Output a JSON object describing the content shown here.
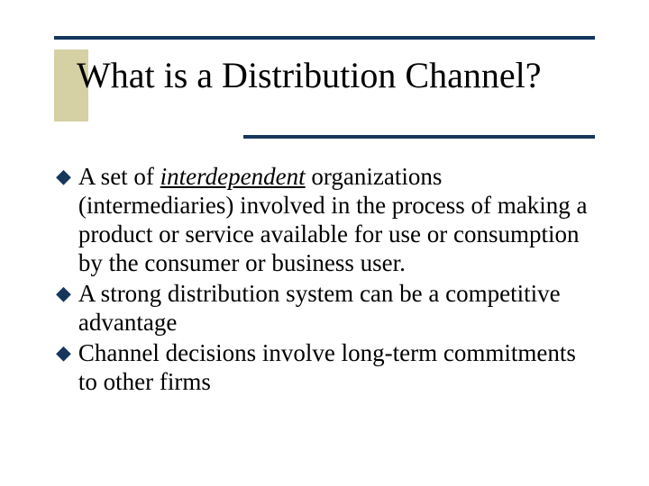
{
  "colors": {
    "rule": "#16365c",
    "accent_block": "#d6d1a5",
    "bullet": "#16365c",
    "text": "#000000",
    "background": "#ffffff"
  },
  "typography": {
    "title_fontsize": 40,
    "body_fontsize": 27,
    "font_family": "Times New Roman"
  },
  "title": "What is a Distribution Channel?",
  "bullets": [
    {
      "pre": "A set of ",
      "emph": "interdependent",
      "post": " organizations (intermediaries) involved in the process of making a product or service available for use or consumption by the consumer or business user."
    },
    {
      "pre": "A strong distribution system can be a competitive advantage",
      "emph": "",
      "post": ""
    },
    {
      "pre": "Channel decisions involve long-term commitments to other firms",
      "emph": "",
      "post": ""
    }
  ]
}
